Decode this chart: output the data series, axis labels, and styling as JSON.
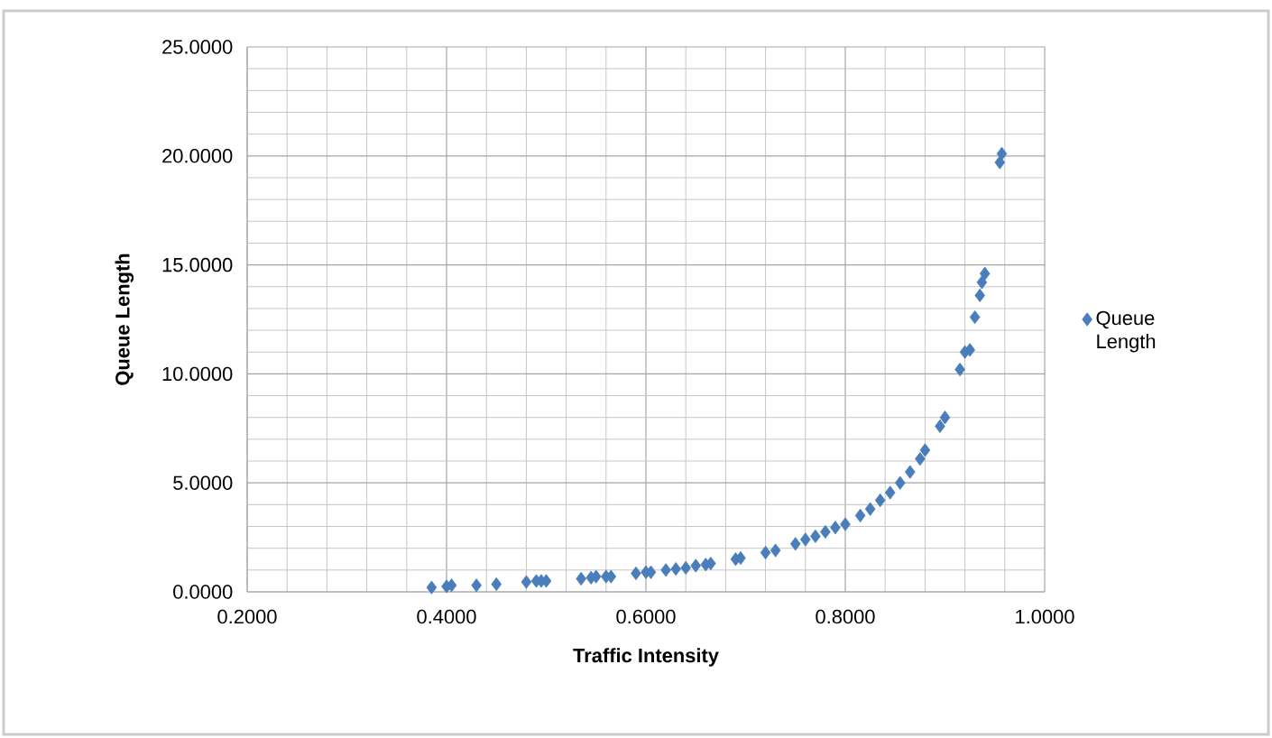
{
  "chart_data": {
    "type": "scatter",
    "xlabel": "Traffic Intensity",
    "ylabel": "Queue Length",
    "xlim": [
      0.2,
      1.0
    ],
    "ylim": [
      0,
      25
    ],
    "xticks": [
      {
        "value": 0.2,
        "label": "0.2000"
      },
      {
        "value": 0.4,
        "label": "0.4000"
      },
      {
        "value": 0.6,
        "label": "0.6000"
      },
      {
        "value": 0.8,
        "label": "0.8000"
      },
      {
        "value": 1.0,
        "label": "1.0000"
      }
    ],
    "yticks": [
      {
        "value": 0,
        "label": "0.0000"
      },
      {
        "value": 5,
        "label": "5.0000"
      },
      {
        "value": 10,
        "label": "10.0000"
      },
      {
        "value": 15,
        "label": "15.0000"
      },
      {
        "value": 20,
        "label": "20.0000"
      },
      {
        "value": 25,
        "label": "25.0000"
      }
    ],
    "grid": true,
    "legend": "right",
    "marker": "diamond",
    "series": [
      {
        "name": "Queue Length",
        "color": "#4a7ebb",
        "x": [
          0.385,
          0.4,
          0.405,
          0.43,
          0.45,
          0.48,
          0.49,
          0.495,
          0.5,
          0.535,
          0.545,
          0.55,
          0.56,
          0.565,
          0.59,
          0.6,
          0.605,
          0.62,
          0.63,
          0.64,
          0.65,
          0.66,
          0.665,
          0.69,
          0.695,
          0.72,
          0.73,
          0.75,
          0.76,
          0.77,
          0.78,
          0.79,
          0.8,
          0.815,
          0.825,
          0.835,
          0.845,
          0.855,
          0.865,
          0.875,
          0.88,
          0.895,
          0.9,
          0.915,
          0.92,
          0.925,
          0.93,
          0.935,
          0.937,
          0.94,
          0.955,
          0.957
        ],
        "values": [
          0.2,
          0.25,
          0.3,
          0.3,
          0.35,
          0.45,
          0.5,
          0.5,
          0.5,
          0.6,
          0.65,
          0.7,
          0.7,
          0.7,
          0.85,
          0.9,
          0.9,
          1.0,
          1.05,
          1.1,
          1.2,
          1.25,
          1.3,
          1.5,
          1.55,
          1.8,
          1.9,
          2.2,
          2.4,
          2.55,
          2.75,
          2.95,
          3.1,
          3.5,
          3.8,
          4.2,
          4.55,
          5.0,
          5.5,
          6.1,
          6.5,
          7.6,
          8.0,
          10.2,
          11.0,
          11.1,
          12.6,
          13.6,
          14.2,
          14.6,
          19.7,
          20.1
        ]
      }
    ]
  }
}
